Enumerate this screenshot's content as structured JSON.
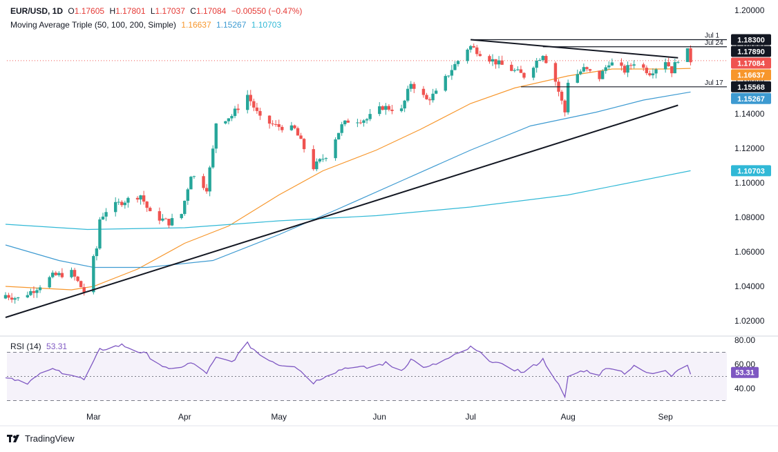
{
  "header": {
    "symbol": "EUR/USD, 1D",
    "o_label": "O",
    "o": "1.17605",
    "h_label": "H",
    "h": "1.17801",
    "l_label": "L",
    "l": "1.17037",
    "c_label": "C",
    "c": "1.17084",
    "chg": "−0.00550 (−0.47%)",
    "ma_title": "Moving Average Triple (50, 100, 200, Simple)",
    "ma50": "1.16637",
    "ma100": "1.15267",
    "ma200": "1.10703",
    "rsi_title": "RSI (14)",
    "rsi_value": "53.31"
  },
  "colors": {
    "up": "#26a69a",
    "down": "#ef5350",
    "ma50": "#f7962b",
    "ma100": "#3d9ad1",
    "ma200": "#30b8d6",
    "rsi": "#7e57c2",
    "trend": "#131722"
  },
  "price_labels": [
    {
      "text": "1.18300",
      "price": 1.183,
      "bg": "#131722",
      "fg": "#ffffff"
    },
    {
      "text": "1.17890",
      "price": 1.1789,
      "bg": "#131722",
      "fg": "#ffffff"
    },
    {
      "text": "1.17084",
      "price": 1.17084,
      "bg": "#ef5350",
      "fg": "#ffffff"
    },
    {
      "text": "1.16637",
      "price": 1.16637,
      "bg": "#f7962b",
      "fg": "#ffffff"
    },
    {
      "text": "1.15568",
      "price": 1.15568,
      "bg": "#131722",
      "fg": "#ffffff"
    },
    {
      "text": "1.15267",
      "price": 1.15267,
      "bg": "#3d9ad1",
      "fg": "#ffffff"
    },
    {
      "text": "1.10703",
      "price": 1.10703,
      "bg": "#30b8d6",
      "fg": "#ffffff"
    }
  ],
  "level_labels": [
    {
      "text": "Jul 1",
      "price": 1.183
    },
    {
      "text": "Jul 24",
      "price": 1.1789
    },
    {
      "text": "Jul 17",
      "price": 1.15568
    }
  ],
  "rsi_value_label": {
    "text": "53.31",
    "value": 53.31,
    "bg": "#7e57c2"
  },
  "branding": {
    "name": "TradingView"
  },
  "chart_data": {
    "type": "candlestick",
    "price_axis": {
      "min": 1.01,
      "max": 1.2,
      "ticks": [
        1.02,
        1.04,
        1.06,
        1.08,
        1.1,
        1.12,
        1.14,
        1.16,
        1.18,
        1.2
      ],
      "tick_labels": [
        "1.02000",
        "1.04000",
        "1.06000",
        "1.08000",
        "1.10000",
        "1.12000",
        "1.14000",
        "1.16000",
        "1.18000",
        "1.20000"
      ]
    },
    "rsi_axis": {
      "min": 25,
      "max": 85,
      "ticks": [
        40,
        60,
        80
      ],
      "tick_labels": [
        "40.00",
        "60.00",
        "80.00"
      ],
      "bands": [
        30,
        50,
        70
      ]
    },
    "x_axis": {
      "start": "2025-02-03",
      "end": "2025-09-19",
      "ticks": [
        {
          "label": "Mar",
          "date": "2025-03-03"
        },
        {
          "label": "Apr",
          "date": "2025-04-01"
        },
        {
          "label": "May",
          "date": "2025-05-01"
        },
        {
          "label": "Jun",
          "date": "2025-06-02"
        },
        {
          "label": "Jul",
          "date": "2025-07-01"
        },
        {
          "label": "Aug",
          "date": "2025-08-01"
        },
        {
          "label": "Sep",
          "date": "2025-09-01"
        }
      ]
    },
    "close_anchors": [
      [
        "2025-02-03",
        1.035
      ],
      [
        "2025-02-07",
        1.033
      ],
      [
        "2025-02-12",
        1.038
      ],
      [
        "2025-02-18",
        1.046
      ],
      [
        "2025-02-24",
        1.048
      ],
      [
        "2025-02-28",
        1.037
      ],
      [
        "2025-03-04",
        1.062
      ],
      [
        "2025-03-05",
        1.079
      ],
      [
        "2025-03-07",
        1.084
      ],
      [
        "2025-03-12",
        1.089
      ],
      [
        "2025-03-18",
        1.093
      ],
      [
        "2025-03-21",
        1.082
      ],
      [
        "2025-03-27",
        1.077
      ],
      [
        "2025-03-31",
        1.082
      ],
      [
        "2025-04-03",
        1.105
      ],
      [
        "2025-04-08",
        1.097
      ],
      [
        "2025-04-10",
        1.119
      ],
      [
        "2025-04-11",
        1.135
      ],
      [
        "2025-04-16",
        1.139
      ],
      [
        "2025-04-21",
        1.151
      ],
      [
        "2025-04-25",
        1.137
      ],
      [
        "2025-04-30",
        1.133
      ],
      [
        "2025-05-06",
        1.131
      ],
      [
        "2025-05-12",
        1.109
      ],
      [
        "2025-05-16",
        1.116
      ],
      [
        "2025-05-21",
        1.133
      ],
      [
        "2025-05-23",
        1.136
      ],
      [
        "2025-05-29",
        1.137
      ],
      [
        "2025-06-03",
        1.144
      ],
      [
        "2025-06-09",
        1.142
      ],
      [
        "2025-06-12",
        1.158
      ],
      [
        "2025-06-17",
        1.148
      ],
      [
        "2025-06-20",
        1.152
      ],
      [
        "2025-06-25",
        1.166
      ],
      [
        "2025-06-30",
        1.178
      ],
      [
        "2025-07-01",
        1.179
      ],
      [
        "2025-07-07",
        1.172
      ],
      [
        "2025-07-10",
        1.169
      ],
      [
        "2025-07-16",
        1.164
      ],
      [
        "2025-07-18",
        1.162
      ],
      [
        "2025-07-24",
        1.175
      ],
      [
        "2025-07-28",
        1.159
      ],
      [
        "2025-07-31",
        1.141
      ],
      [
        "2025-08-01",
        1.159
      ],
      [
        "2025-08-06",
        1.166
      ],
      [
        "2025-08-11",
        1.161
      ],
      [
        "2025-08-14",
        1.17
      ],
      [
        "2025-08-19",
        1.165
      ],
      [
        "2025-08-22",
        1.17
      ],
      [
        "2025-08-27",
        1.164
      ],
      [
        "2025-09-01",
        1.171
      ],
      [
        "2025-09-03",
        1.165
      ],
      [
        "2025-09-05",
        1.172
      ],
      [
        "2025-09-08",
        1.176
      ],
      [
        "2025-09-09",
        1.171
      ]
    ],
    "moving_averages": [
      {
        "name": "MA 50",
        "period": 50,
        "color_key": "ma50",
        "points": [
          [
            "2025-02-03",
            1.04
          ],
          [
            "2025-02-24",
            1.038
          ],
          [
            "2025-03-03",
            1.04
          ],
          [
            "2025-03-17",
            1.05
          ],
          [
            "2025-04-01",
            1.065
          ],
          [
            "2025-04-15",
            1.075
          ],
          [
            "2025-05-01",
            1.093
          ],
          [
            "2025-05-15",
            1.107
          ],
          [
            "2025-06-01",
            1.119
          ],
          [
            "2025-06-15",
            1.131
          ],
          [
            "2025-07-01",
            1.146
          ],
          [
            "2025-07-15",
            1.155
          ],
          [
            "2025-08-01",
            1.162
          ],
          [
            "2025-08-15",
            1.166
          ],
          [
            "2025-09-01",
            1.166
          ],
          [
            "2025-09-09",
            1.16637
          ]
        ]
      },
      {
        "name": "MA 100",
        "period": 100,
        "color_key": "ma100",
        "points": [
          [
            "2025-02-03",
            1.064
          ],
          [
            "2025-02-20",
            1.055
          ],
          [
            "2025-03-03",
            1.051
          ],
          [
            "2025-03-20",
            1.051
          ],
          [
            "2025-04-10",
            1.055
          ],
          [
            "2025-05-01",
            1.07
          ],
          [
            "2025-05-20",
            1.085
          ],
          [
            "2025-06-10",
            1.102
          ],
          [
            "2025-07-01",
            1.119
          ],
          [
            "2025-07-20",
            1.133
          ],
          [
            "2025-08-10",
            1.141
          ],
          [
            "2025-08-25",
            1.148
          ],
          [
            "2025-09-09",
            1.15267
          ]
        ]
      },
      {
        "name": "MA 200",
        "period": 200,
        "color_key": "ma200",
        "points": [
          [
            "2025-02-03",
            1.076
          ],
          [
            "2025-03-01",
            1.073
          ],
          [
            "2025-04-01",
            1.074
          ],
          [
            "2025-05-01",
            1.078
          ],
          [
            "2025-06-01",
            1.081
          ],
          [
            "2025-07-01",
            1.086
          ],
          [
            "2025-08-01",
            1.093
          ],
          [
            "2025-09-09",
            1.10703
          ]
        ]
      }
    ],
    "trendlines": [
      {
        "name": "ascending support",
        "from": [
          "2025-02-03",
          1.022
        ],
        "to": [
          "2025-09-05",
          1.145
        ]
      },
      {
        "name": "descending resistance",
        "from": [
          "2025-07-01",
          1.183
        ],
        "to": [
          "2025-09-05",
          1.1725
        ]
      },
      {
        "name": "Jul 1 level",
        "from": [
          "2025-07-01",
          1.183
        ],
        "to": [
          "2025-09-19",
          1.183
        ]
      },
      {
        "name": "Jul 24 level",
        "from": [
          "2025-07-24",
          1.1789
        ],
        "to": [
          "2025-09-19",
          1.1789
        ]
      },
      {
        "name": "Jul 17 level",
        "from": [
          "2025-07-17",
          1.15568
        ],
        "to": [
          "2025-09-19",
          1.15568
        ]
      }
    ],
    "rsi_anchors": [
      [
        "2025-02-03",
        50
      ],
      [
        "2025-02-10",
        45
      ],
      [
        "2025-02-17",
        56
      ],
      [
        "2025-02-24",
        52
      ],
      [
        "2025-02-28",
        47
      ],
      [
        "2025-03-05",
        72
      ],
      [
        "2025-03-12",
        76
      ],
      [
        "2025-03-20",
        68
      ],
      [
        "2025-03-27",
        55
      ],
      [
        "2025-04-03",
        61
      ],
      [
        "2025-04-08",
        53
      ],
      [
        "2025-04-11",
        65
      ],
      [
        "2025-04-16",
        62
      ],
      [
        "2025-04-21",
        77
      ],
      [
        "2025-04-25",
        68
      ],
      [
        "2025-05-01",
        60
      ],
      [
        "2025-05-06",
        59
      ],
      [
        "2025-05-12",
        45
      ],
      [
        "2025-05-16",
        51
      ],
      [
        "2025-05-23",
        58
      ],
      [
        "2025-05-29",
        57
      ],
      [
        "2025-06-04",
        61
      ],
      [
        "2025-06-09",
        55
      ],
      [
        "2025-06-12",
        64
      ],
      [
        "2025-06-17",
        57
      ],
      [
        "2025-06-25",
        66
      ],
      [
        "2025-07-01",
        74
      ],
      [
        "2025-07-07",
        64
      ],
      [
        "2025-07-10",
        60
      ],
      [
        "2025-07-16",
        55
      ],
      [
        "2025-07-18",
        53
      ],
      [
        "2025-07-24",
        64
      ],
      [
        "2025-07-28",
        48
      ],
      [
        "2025-07-31",
        32
      ],
      [
        "2025-08-01",
        50
      ],
      [
        "2025-08-06",
        55
      ],
      [
        "2025-08-11",
        52
      ],
      [
        "2025-08-14",
        58
      ],
      [
        "2025-08-19",
        53
      ],
      [
        "2025-08-22",
        58
      ],
      [
        "2025-08-27",
        52
      ],
      [
        "2025-09-01",
        56
      ],
      [
        "2025-09-03",
        51
      ],
      [
        "2025-09-05",
        56
      ],
      [
        "2025-09-08",
        59
      ],
      [
        "2025-09-09",
        53.31
      ]
    ]
  }
}
